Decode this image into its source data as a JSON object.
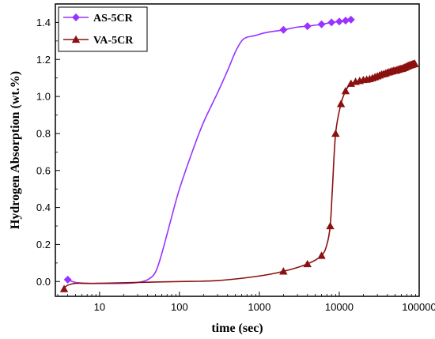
{
  "chart_data": {
    "type": "line",
    "xlabel": "time (sec)",
    "ylabel": "Hydrogen Absorption (wt.%)",
    "xscale": "log",
    "xlim": [
      2.8,
      100000
    ],
    "ylim": [
      -0.08,
      1.5
    ],
    "xticks": [
      {
        "value": 10,
        "label": "10"
      },
      {
        "value": 100,
        "label": "100"
      },
      {
        "value": 1000,
        "label": "1000"
      },
      {
        "value": 10000,
        "label": "10000"
      },
      {
        "value": 100000,
        "label": "100000"
      }
    ],
    "yticks": [
      {
        "value": 0.0,
        "label": "0.0"
      },
      {
        "value": 0.2,
        "label": "0.2"
      },
      {
        "value": 0.4,
        "label": "0.4"
      },
      {
        "value": 0.6,
        "label": "0.6"
      },
      {
        "value": 0.8,
        "label": "0.8"
      },
      {
        "value": 1.0,
        "label": "1.0"
      },
      {
        "value": 1.2,
        "label": "1.2"
      },
      {
        "value": 1.4,
        "label": "1.4"
      }
    ],
    "legend_position": "top-left",
    "series": [
      {
        "name": "AS-5CR",
        "color": "#9933ff",
        "marker": "diamond",
        "line": [
          [
            4,
            0.01
          ],
          [
            5,
            -0.005
          ],
          [
            7,
            -0.01
          ],
          [
            10,
            -0.01
          ],
          [
            20,
            -0.01
          ],
          [
            30,
            -0.005
          ],
          [
            40,
            0.01
          ],
          [
            50,
            0.05
          ],
          [
            60,
            0.15
          ],
          [
            80,
            0.35
          ],
          [
            100,
            0.5
          ],
          [
            150,
            0.72
          ],
          [
            200,
            0.86
          ],
          [
            300,
            1.02
          ],
          [
            400,
            1.14
          ],
          [
            500,
            1.24
          ],
          [
            600,
            1.3
          ],
          [
            700,
            1.32
          ],
          [
            900,
            1.33
          ],
          [
            1200,
            1.345
          ],
          [
            2000,
            1.36
          ],
          [
            3000,
            1.375
          ],
          [
            4000,
            1.38
          ],
          [
            6000,
            1.39
          ],
          [
            8000,
            1.4
          ],
          [
            10000,
            1.405
          ],
          [
            14000,
            1.415
          ]
        ],
        "markers": [
          [
            4,
            0.01
          ],
          [
            2000,
            1.36
          ],
          [
            4000,
            1.38
          ],
          [
            6000,
            1.39
          ],
          [
            8000,
            1.4
          ],
          [
            10000,
            1.405
          ],
          [
            12000,
            1.41
          ],
          [
            14000,
            1.415
          ]
        ]
      },
      {
        "name": "VA-5CR",
        "color": "#8b1010",
        "marker": "triangle",
        "line": [
          [
            3.5,
            -0.04
          ],
          [
            4,
            -0.02
          ],
          [
            5,
            -0.01
          ],
          [
            7,
            -0.01
          ],
          [
            10,
            -0.01
          ],
          [
            30,
            -0.005
          ],
          [
            100,
            0.0
          ],
          [
            300,
            0.005
          ],
          [
            1000,
            0.03
          ],
          [
            2000,
            0.055
          ],
          [
            4000,
            0.095
          ],
          [
            6000,
            0.14
          ],
          [
            7000,
            0.2
          ],
          [
            7700,
            0.3
          ],
          [
            8200,
            0.5
          ],
          [
            9000,
            0.8
          ],
          [
            10500,
            0.96
          ],
          [
            12000,
            1.03
          ],
          [
            14000,
            1.07
          ],
          [
            17000,
            1.08
          ],
          [
            20000,
            1.09
          ],
          [
            30000,
            1.11
          ],
          [
            40000,
            1.13
          ],
          [
            50000,
            1.14
          ],
          [
            60000,
            1.15
          ],
          [
            80000,
            1.17
          ],
          [
            90000,
            1.175
          ]
        ],
        "markers": [
          [
            3.6,
            -0.04
          ],
          [
            2000,
            0.055
          ],
          [
            4000,
            0.095
          ],
          [
            6000,
            0.14
          ],
          [
            7700,
            0.3
          ],
          [
            9000,
            0.8
          ],
          [
            10500,
            0.96
          ],
          [
            12000,
            1.03
          ],
          [
            14000,
            1.07
          ],
          [
            16000,
            1.08
          ],
          [
            18000,
            1.085
          ],
          [
            20000,
            1.09
          ],
          [
            22000,
            1.092
          ],
          [
            24000,
            1.095
          ],
          [
            26000,
            1.1
          ],
          [
            28000,
            1.105
          ],
          [
            30000,
            1.11
          ],
          [
            32000,
            1.115
          ],
          [
            34000,
            1.12
          ],
          [
            36000,
            1.122
          ],
          [
            38000,
            1.125
          ],
          [
            40000,
            1.13
          ],
          [
            42000,
            1.132
          ],
          [
            44000,
            1.135
          ],
          [
            46000,
            1.137
          ],
          [
            48000,
            1.14
          ],
          [
            50000,
            1.14
          ],
          [
            52000,
            1.142
          ],
          [
            54000,
            1.145
          ],
          [
            56000,
            1.147
          ],
          [
            58000,
            1.15
          ],
          [
            60000,
            1.15
          ],
          [
            62000,
            1.152
          ],
          [
            64000,
            1.155
          ],
          [
            66000,
            1.157
          ],
          [
            68000,
            1.16
          ],
          [
            70000,
            1.162
          ],
          [
            72000,
            1.165
          ],
          [
            74000,
            1.167
          ],
          [
            76000,
            1.17
          ],
          [
            78000,
            1.17
          ],
          [
            80000,
            1.172
          ],
          [
            82000,
            1.174
          ],
          [
            84000,
            1.175
          ],
          [
            86000,
            1.176
          ],
          [
            88000,
            1.178
          ]
        ]
      }
    ]
  }
}
